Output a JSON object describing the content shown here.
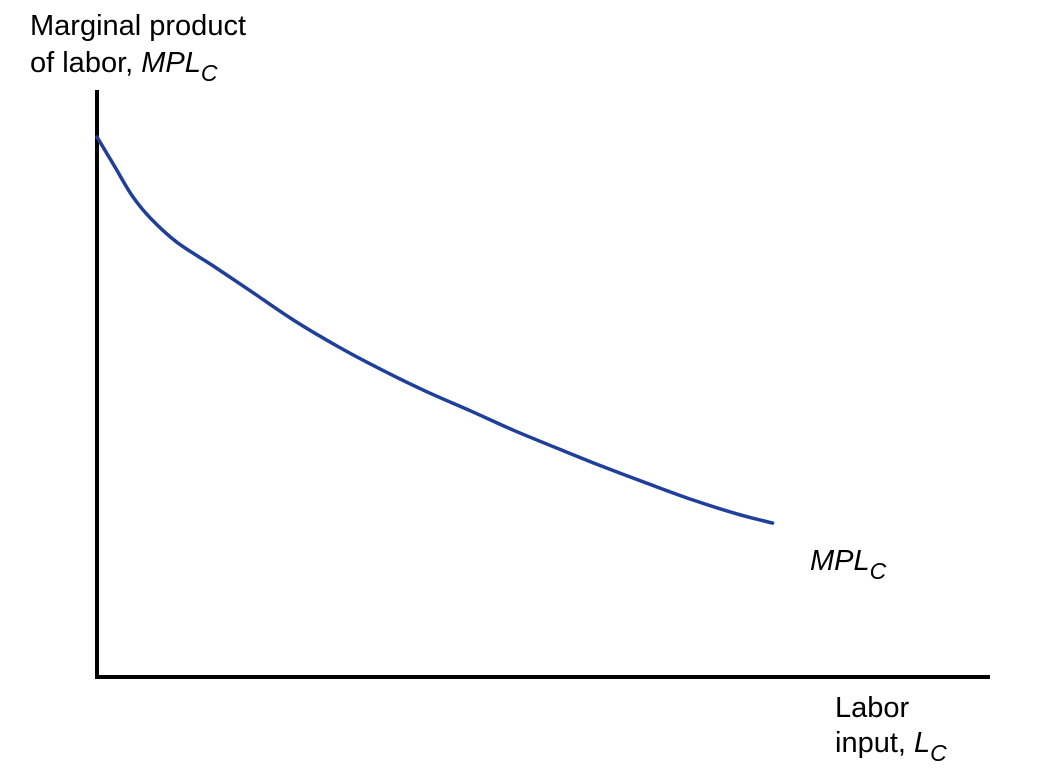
{
  "chart_data": {
    "type": "line",
    "ylabel": {
      "line1": "Marginal product",
      "line2_prefix": "of labor, ",
      "line2_var": "MPL",
      "line2_sub": "C"
    },
    "xlabel": {
      "line1": "Labor",
      "line2_prefix": "input, ",
      "line2_var": "L",
      "line2_sub": "C"
    },
    "xlim": [
      0,
      100
    ],
    "ylim": [
      0,
      100
    ],
    "grid": false,
    "series": [
      {
        "name": "MPL_C",
        "label_var": "MPL",
        "label_sub": "C",
        "color": "#1f3f9a",
        "x": [
          0,
          2,
          4,
          6,
          9,
          13,
          17,
          22,
          27,
          32,
          37,
          42,
          47,
          52,
          57,
          62,
          67,
          72,
          76
        ],
        "y": [
          100,
          94.5,
          89,
          85,
          80.5,
          76.2,
          71.8,
          66.2,
          61.3,
          56.9,
          52.9,
          49.3,
          45.6,
          42.2,
          38.9,
          35.8,
          32.8,
          30.2,
          28.5
        ]
      }
    ]
  }
}
